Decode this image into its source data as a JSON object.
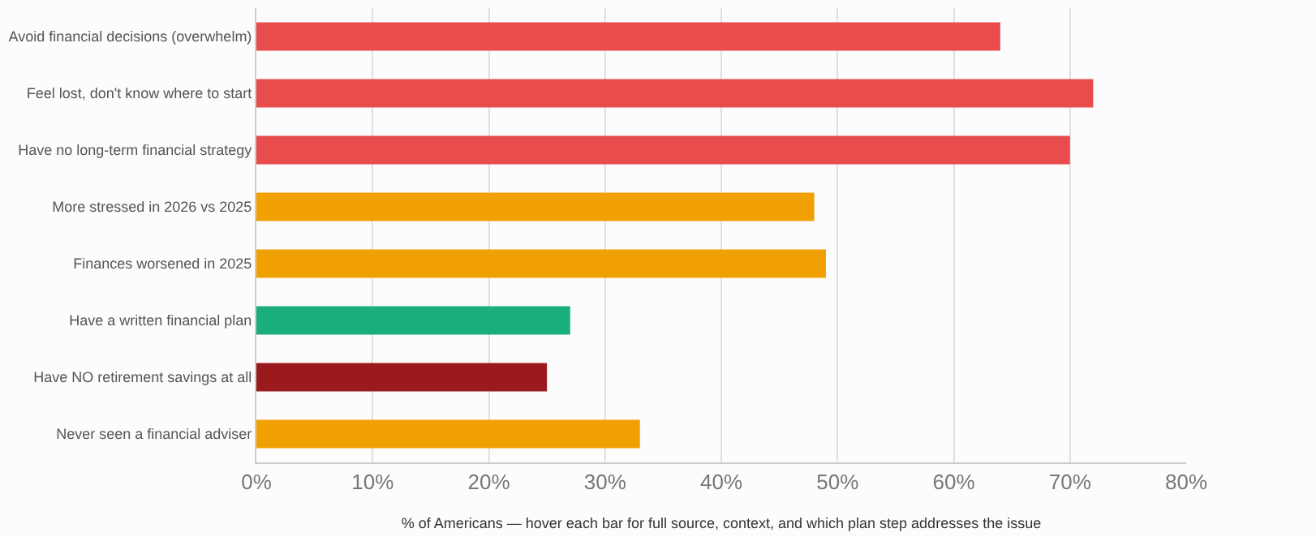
{
  "chart_data": {
    "type": "bar",
    "orientation": "horizontal",
    "categories": [
      "Avoid financial decisions (overwhelm)",
      "Feel lost, don't know where to start",
      "Have no long-term financial strategy",
      "More stressed in 2026 vs 2025",
      "Finances worsened in 2025",
      "Have a written financial plan",
      "Have NO retirement savings at all",
      "Never seen a financial adviser"
    ],
    "values": [
      64,
      72,
      70,
      48,
      49,
      27,
      25,
      33
    ],
    "colors": [
      "#e84c4c",
      "#e84c4c",
      "#e84c4c",
      "#f0a000",
      "#f0a000",
      "#1aaf7a",
      "#9b1a1e",
      "#f0a000"
    ],
    "xlim": [
      0,
      80
    ],
    "xticks": [
      {
        "value": 0,
        "label": "0%"
      },
      {
        "value": 10,
        "label": "10%"
      },
      {
        "value": 20,
        "label": "20%"
      },
      {
        "value": 30,
        "label": "30%"
      },
      {
        "value": 40,
        "label": "40%"
      },
      {
        "value": 50,
        "label": "50%"
      },
      {
        "value": 60,
        "label": "60%"
      },
      {
        "value": 70,
        "label": "70%"
      },
      {
        "value": 80,
        "label": "80%"
      }
    ],
    "xlabel": "% of Americans — hover each bar for full source, context, and which plan step addresses the issue",
    "grid": "x"
  }
}
